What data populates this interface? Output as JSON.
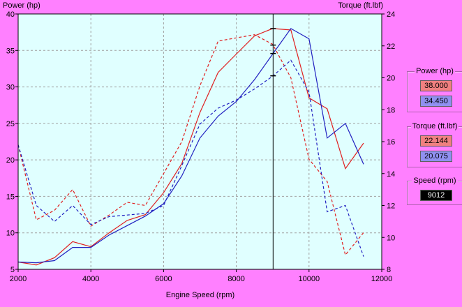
{
  "chart_data": {
    "type": "line",
    "xlabel": "Engine Speed (rpm)",
    "ylabel_left": "Power (hp)",
    "ylabel_right": "Torque (ft.lbf)",
    "xlim": [
      2000,
      12000
    ],
    "ylim_left": [
      5,
      40
    ],
    "ylim_right": [
      8,
      24
    ],
    "xticks": [
      2000,
      4000,
      6000,
      8000,
      10000,
      12000
    ],
    "yticks_left": [
      5,
      10,
      15,
      20,
      25,
      30,
      35,
      40
    ],
    "yticks_right": [
      8,
      10,
      12,
      14,
      16,
      18,
      20,
      22,
      24
    ],
    "grid": true,
    "cursor_x": 9012,
    "series": [
      {
        "color": "#e02020",
        "style": "solid",
        "axis": "left",
        "x": [
          2000,
          2500,
          3000,
          3500,
          4000,
          4500,
          5000,
          5500,
          6000,
          6500,
          7000,
          7500,
          8000,
          8500,
          9000,
          9500,
          10000,
          10500,
          11000,
          11500
        ],
        "y": [
          6.0,
          5.6,
          6.6,
          8.8,
          8.1,
          10.0,
          11.7,
          12.5,
          15.5,
          19.5,
          26.5,
          32.0,
          34.5,
          37.0,
          38.0,
          37.8,
          28.5,
          27.0,
          18.8,
          22.3
        ]
      },
      {
        "color": "#2020c0",
        "style": "solid",
        "axis": "left",
        "x": [
          2000,
          2500,
          3000,
          3500,
          4000,
          4500,
          5000,
          5500,
          6000,
          6500,
          7000,
          7500,
          8000,
          8500,
          9000,
          9500,
          10000,
          10500,
          11000,
          11500
        ],
        "y": [
          6.0,
          5.9,
          6.2,
          8.0,
          8.0,
          9.7,
          11.0,
          12.3,
          14.0,
          17.8,
          23.0,
          26.0,
          28.0,
          31.0,
          34.5,
          38.0,
          36.6,
          23.0,
          25.0,
          19.4
        ]
      },
      {
        "color": "#e02020",
        "style": "dashed",
        "axis": "right",
        "x": [
          2000,
          2500,
          3000,
          3500,
          4000,
          4500,
          5000,
          5500,
          6000,
          6500,
          7000,
          7500,
          8000,
          8500,
          9000,
          9500,
          10000,
          10500,
          11000,
          11500
        ],
        "y": [
          15.8,
          11.1,
          11.7,
          13.0,
          10.7,
          11.4,
          12.2,
          12.0,
          14.0,
          16.0,
          19.5,
          22.3,
          22.5,
          22.7,
          22.1,
          20.0,
          14.9,
          13.5,
          8.9,
          10.3
        ]
      },
      {
        "color": "#2020c0",
        "style": "dashed",
        "axis": "right",
        "x": [
          2000,
          2500,
          3000,
          3500,
          4000,
          4500,
          5000,
          5500,
          6000,
          6500,
          7000,
          7500,
          8000,
          8500,
          9000,
          9500,
          10000,
          10500,
          11000,
          11500
        ],
        "y": [
          15.8,
          12.0,
          11.0,
          12.0,
          10.8,
          11.3,
          11.4,
          11.5,
          12.0,
          14.5,
          17.1,
          18.1,
          18.6,
          19.3,
          20.1,
          21.1,
          19.1,
          11.6,
          12.0,
          8.8
        ]
      }
    ]
  },
  "panels": {
    "power": {
      "title": "Power (hp)",
      "value1": "38.000",
      "value2": "34.450"
    },
    "torque": {
      "title": "Torque (ft.lbf)",
      "value1": "22.144",
      "value2": "20.075"
    },
    "speed": {
      "title": "Speed (rpm)",
      "value": "9012"
    }
  },
  "colors": {
    "background": "#ff80ff",
    "plot": "#e0ffff",
    "grid": "#a0a0a0",
    "red_box": "#f08080",
    "blue_box": "#9090f0",
    "speed_box": "#000000",
    "speed_text": "#ffffff"
  }
}
